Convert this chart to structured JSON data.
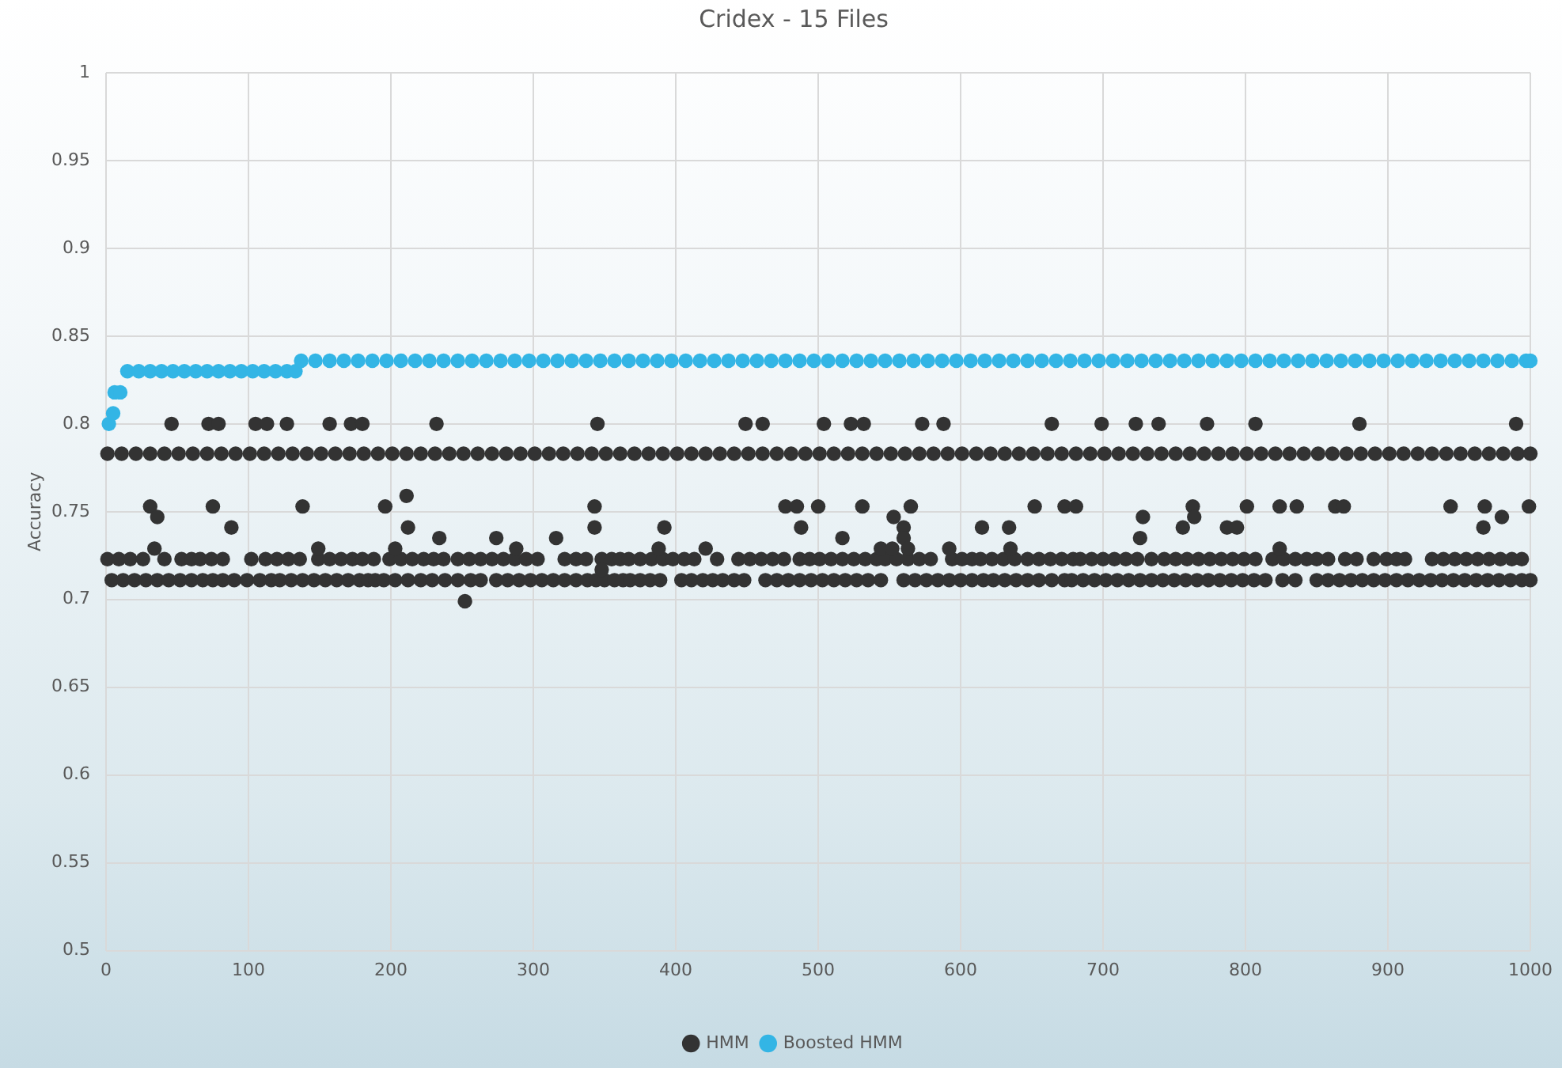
{
  "chart_data": {
    "type": "scatter",
    "title": "Cridex - 15 Files",
    "ylabel": "Accuracy",
    "xlim": [
      0,
      1000
    ],
    "xticks": [
      0,
      100,
      200,
      300,
      400,
      500,
      600,
      700,
      800,
      900,
      1000
    ],
    "ylim": [
      0.5,
      1
    ],
    "yticks": [
      0.5,
      0.55,
      0.6,
      0.65,
      0.7,
      0.75,
      0.8,
      0.85,
      0.9,
      0.95,
      1
    ],
    "grid": true,
    "legend": "bottom",
    "marker": "circle",
    "series": [
      {
        "name": "HMM",
        "color": "#333333",
        "x": [
          1,
          11,
          21,
          31,
          41,
          51,
          61,
          71,
          81,
          91,
          101,
          111,
          121,
          131,
          141,
          151,
          161,
          171,
          181,
          191,
          201,
          211,
          221,
          231,
          241,
          251,
          261,
          271,
          281,
          291,
          301,
          311,
          321,
          331,
          341,
          351,
          361,
          371,
          381,
          391,
          401,
          411,
          421,
          431,
          441,
          451,
          461,
          471,
          481,
          491,
          501,
          511,
          521,
          531,
          541,
          551,
          561,
          571,
          581,
          591,
          601,
          611,
          621,
          631,
          641,
          651,
          661,
          671,
          681,
          691,
          701,
          711,
          721,
          731,
          741,
          751,
          761,
          771,
          781,
          791,
          801,
          811,
          821,
          831,
          841,
          851,
          861,
          871,
          881,
          891,
          901,
          911,
          921,
          931,
          941,
          951,
          961,
          971,
          981,
          991,
          1000,
          1,
          9,
          17,
          26,
          41,
          53,
          60,
          66,
          74,
          82,
          102,
          112,
          120,
          128,
          136,
          149,
          157,
          165,
          173,
          180,
          188,
          199,
          207,
          215,
          223,
          230,
          237,
          247,
          255,
          263,
          271,
          279,
          287,
          295,
          303,
          322,
          330,
          337,
          348,
          355,
          361,
          367,
          375,
          383,
          391,
          398,
          406,
          413,
          429,
          444,
          452,
          460,
          468,
          476,
          487,
          494,
          501,
          509,
          517,
          525,
          533,
          541,
          547,
          555,
          563,
          571,
          579,
          594,
          601,
          608,
          614,
          622,
          630,
          638,
          647,
          655,
          663,
          671,
          679,
          684,
          692,
          700,
          708,
          716,
          724,
          734,
          743,
          751,
          759,
          767,
          775,
          783,
          791,
          799,
          807,
          819,
          827,
          835,
          843,
          850,
          858,
          870,
          878,
          890,
          899,
          906,
          912,
          931,
          939,
          947,
          955,
          963,
          971,
          979,
          987,
          994,
          4,
          12,
          20,
          28,
          36,
          44,
          52,
          60,
          68,
          75,
          82,
          90,
          99,
          108,
          116,
          122,
          130,
          138,
          146,
          154,
          162,
          170,
          178,
          184,
          189,
          195,
          203,
          212,
          221,
          229,
          238,
          247,
          256,
          263,
          274,
          282,
          290,
          298,
          306,
          314,
          322,
          330,
          338,
          344,
          350,
          357,
          363,
          368,
          375,
          382,
          389,
          404,
          411,
          419,
          426,
          433,
          441,
          448,
          463,
          471,
          479,
          487,
          495,
          503,
          511,
          519,
          527,
          535,
          544,
          560,
          568,
          576,
          584,
          592,
          600,
          608,
          616,
          623,
          631,
          639,
          647,
          655,
          664,
          673,
          678,
          686,
          694,
          702,
          710,
          718,
          726,
          734,
          742,
          750,
          758,
          766,
          774,
          782,
          790,
          798,
          806,
          814,
          826,
          835,
          850,
          858,
          866,
          874,
          882,
          890,
          898,
          906,
          914,
          922,
          930,
          938,
          946,
          954,
          962,
          970,
          978,
          986,
          994,
          1000,
          46,
          72,
          79,
          105,
          113,
          127,
          157,
          172,
          180,
          232,
          345,
          449,
          461,
          504,
          523,
          532,
          573,
          588,
          664,
          699,
          723,
          739,
          773,
          807,
          880,
          990,
          211,
          31,
          75,
          138,
          196,
          343,
          477,
          485,
          500,
          531,
          565,
          652,
          673,
          681,
          763,
          801,
          824,
          836,
          863,
          869,
          944,
          968,
          999,
          36,
          553,
          728,
          764,
          980,
          88,
          212,
          343,
          392,
          488,
          560,
          615,
          634,
          756,
          787,
          794,
          967,
          234,
          274,
          316,
          517,
          560,
          726,
          34,
          149,
          203,
          288,
          388,
          421,
          544,
          552,
          563,
          592,
          635,
          824,
          348,
          252
        ],
        "values": [
          0.783,
          0.783,
          0.783,
          0.783,
          0.783,
          0.783,
          0.783,
          0.783,
          0.783,
          0.783,
          0.783,
          0.783,
          0.783,
          0.783,
          0.783,
          0.783,
          0.783,
          0.783,
          0.783,
          0.783,
          0.783,
          0.783,
          0.783,
          0.783,
          0.783,
          0.783,
          0.783,
          0.783,
          0.783,
          0.783,
          0.783,
          0.783,
          0.783,
          0.783,
          0.783,
          0.783,
          0.783,
          0.783,
          0.783,
          0.783,
          0.783,
          0.783,
          0.783,
          0.783,
          0.783,
          0.783,
          0.783,
          0.783,
          0.783,
          0.783,
          0.783,
          0.783,
          0.783,
          0.783,
          0.783,
          0.783,
          0.783,
          0.783,
          0.783,
          0.783,
          0.783,
          0.783,
          0.783,
          0.783,
          0.783,
          0.783,
          0.783,
          0.783,
          0.783,
          0.783,
          0.783,
          0.783,
          0.783,
          0.783,
          0.783,
          0.783,
          0.783,
          0.783,
          0.783,
          0.783,
          0.783,
          0.783,
          0.783,
          0.783,
          0.783,
          0.783,
          0.783,
          0.783,
          0.783,
          0.783,
          0.783,
          0.783,
          0.783,
          0.783,
          0.783,
          0.783,
          0.783,
          0.783,
          0.783,
          0.783,
          0.783,
          0.723,
          0.723,
          0.723,
          0.723,
          0.723,
          0.723,
          0.723,
          0.723,
          0.723,
          0.723,
          0.723,
          0.723,
          0.723,
          0.723,
          0.723,
          0.723,
          0.723,
          0.723,
          0.723,
          0.723,
          0.723,
          0.723,
          0.723,
          0.723,
          0.723,
          0.723,
          0.723,
          0.723,
          0.723,
          0.723,
          0.723,
          0.723,
          0.723,
          0.723,
          0.723,
          0.723,
          0.723,
          0.723,
          0.723,
          0.723,
          0.723,
          0.723,
          0.723,
          0.723,
          0.723,
          0.723,
          0.723,
          0.723,
          0.723,
          0.723,
          0.723,
          0.723,
          0.723,
          0.723,
          0.723,
          0.723,
          0.723,
          0.723,
          0.723,
          0.723,
          0.723,
          0.723,
          0.723,
          0.723,
          0.723,
          0.723,
          0.723,
          0.723,
          0.723,
          0.723,
          0.723,
          0.723,
          0.723,
          0.723,
          0.723,
          0.723,
          0.723,
          0.723,
          0.723,
          0.723,
          0.723,
          0.723,
          0.723,
          0.723,
          0.723,
          0.723,
          0.723,
          0.723,
          0.723,
          0.723,
          0.723,
          0.723,
          0.723,
          0.723,
          0.723,
          0.723,
          0.723,
          0.723,
          0.723,
          0.723,
          0.723,
          0.723,
          0.723,
          0.723,
          0.723,
          0.723,
          0.723,
          0.723,
          0.723,
          0.723,
          0.723,
          0.723,
          0.723,
          0.723,
          0.723,
          0.723,
          0.711,
          0.711,
          0.711,
          0.711,
          0.711,
          0.711,
          0.711,
          0.711,
          0.711,
          0.711,
          0.711,
          0.711,
          0.711,
          0.711,
          0.711,
          0.711,
          0.711,
          0.711,
          0.711,
          0.711,
          0.711,
          0.711,
          0.711,
          0.711,
          0.711,
          0.711,
          0.711,
          0.711,
          0.711,
          0.711,
          0.711,
          0.711,
          0.711,
          0.711,
          0.711,
          0.711,
          0.711,
          0.711,
          0.711,
          0.711,
          0.711,
          0.711,
          0.711,
          0.711,
          0.711,
          0.711,
          0.711,
          0.711,
          0.711,
          0.711,
          0.711,
          0.711,
          0.711,
          0.711,
          0.711,
          0.711,
          0.711,
          0.711,
          0.711,
          0.711,
          0.711,
          0.711,
          0.711,
          0.711,
          0.711,
          0.711,
          0.711,
          0.711,
          0.711,
          0.711,
          0.711,
          0.711,
          0.711,
          0.711,
          0.711,
          0.711,
          0.711,
          0.711,
          0.711,
          0.711,
          0.711,
          0.711,
          0.711,
          0.711,
          0.711,
          0.711,
          0.711,
          0.711,
          0.711,
          0.711,
          0.711,
          0.711,
          0.711,
          0.711,
          0.711,
          0.711,
          0.711,
          0.711,
          0.711,
          0.711,
          0.711,
          0.711,
          0.711,
          0.711,
          0.711,
          0.711,
          0.711,
          0.711,
          0.711,
          0.711,
          0.711,
          0.711,
          0.711,
          0.711,
          0.711,
          0.711,
          0.711,
          0.711,
          0.711,
          0.711,
          0.711,
          0.711,
          0.711,
          0.711,
          0.8,
          0.8,
          0.8,
          0.8,
          0.8,
          0.8,
          0.8,
          0.8,
          0.8,
          0.8,
          0.8,
          0.8,
          0.8,
          0.8,
          0.8,
          0.8,
          0.8,
          0.8,
          0.8,
          0.8,
          0.8,
          0.8,
          0.8,
          0.8,
          0.8,
          0.8,
          0.759,
          0.753,
          0.753,
          0.753,
          0.753,
          0.753,
          0.753,
          0.753,
          0.753,
          0.753,
          0.753,
          0.753,
          0.753,
          0.753,
          0.753,
          0.753,
          0.753,
          0.753,
          0.753,
          0.753,
          0.753,
          0.753,
          0.753,
          0.747,
          0.747,
          0.747,
          0.747,
          0.747,
          0.741,
          0.741,
          0.741,
          0.741,
          0.741,
          0.741,
          0.741,
          0.741,
          0.741,
          0.741,
          0.741,
          0.741,
          0.735,
          0.735,
          0.735,
          0.735,
          0.735,
          0.735,
          0.729,
          0.729,
          0.729,
          0.729,
          0.729,
          0.729,
          0.729,
          0.729,
          0.729,
          0.729,
          0.729,
          0.729,
          0.717,
          0.699
        ]
      },
      {
        "name": "Boosted HMM",
        "color": "#33b5e5",
        "x": [
          2,
          5,
          6,
          10,
          15,
          23,
          31,
          39,
          47,
          55,
          63,
          71,
          79,
          87,
          95,
          103,
          111,
          119,
          127,
          133,
          137,
          147,
          157,
          167,
          177,
          187,
          197,
          207,
          217,
          227,
          237,
          247,
          257,
          267,
          277,
          287,
          297,
          307,
          317,
          327,
          337,
          347,
          357,
          367,
          377,
          387,
          397,
          407,
          417,
          427,
          437,
          447,
          457,
          467,
          477,
          487,
          497,
          507,
          517,
          527,
          537,
          547,
          557,
          567,
          577,
          587,
          597,
          607,
          617,
          627,
          637,
          647,
          657,
          667,
          677,
          687,
          697,
          707,
          717,
          727,
          737,
          747,
          757,
          767,
          777,
          787,
          797,
          807,
          817,
          827,
          837,
          847,
          857,
          867,
          877,
          887,
          897,
          907,
          917,
          927,
          937,
          947,
          957,
          967,
          977,
          987,
          997,
          1000
        ],
        "values": [
          0.8,
          0.806,
          0.818,
          0.818,
          0.83,
          0.83,
          0.83,
          0.83,
          0.83,
          0.83,
          0.83,
          0.83,
          0.83,
          0.83,
          0.83,
          0.83,
          0.83,
          0.83,
          0.83,
          0.83,
          0.836,
          0.836,
          0.836,
          0.836,
          0.836,
          0.836,
          0.836,
          0.836,
          0.836,
          0.836,
          0.836,
          0.836,
          0.836,
          0.836,
          0.836,
          0.836,
          0.836,
          0.836,
          0.836,
          0.836,
          0.836,
          0.836,
          0.836,
          0.836,
          0.836,
          0.836,
          0.836,
          0.836,
          0.836,
          0.836,
          0.836,
          0.836,
          0.836,
          0.836,
          0.836,
          0.836,
          0.836,
          0.836,
          0.836,
          0.836,
          0.836,
          0.836,
          0.836,
          0.836,
          0.836,
          0.836,
          0.836,
          0.836,
          0.836,
          0.836,
          0.836,
          0.836,
          0.836,
          0.836,
          0.836,
          0.836,
          0.836,
          0.836,
          0.836,
          0.836,
          0.836,
          0.836,
          0.836,
          0.836,
          0.836,
          0.836,
          0.836,
          0.836,
          0.836,
          0.836,
          0.836,
          0.836,
          0.836,
          0.836,
          0.836,
          0.836,
          0.836,
          0.836,
          0.836,
          0.836,
          0.836,
          0.836,
          0.836,
          0.836,
          0.836,
          0.836,
          0.836,
          0.836
        ]
      }
    ]
  }
}
